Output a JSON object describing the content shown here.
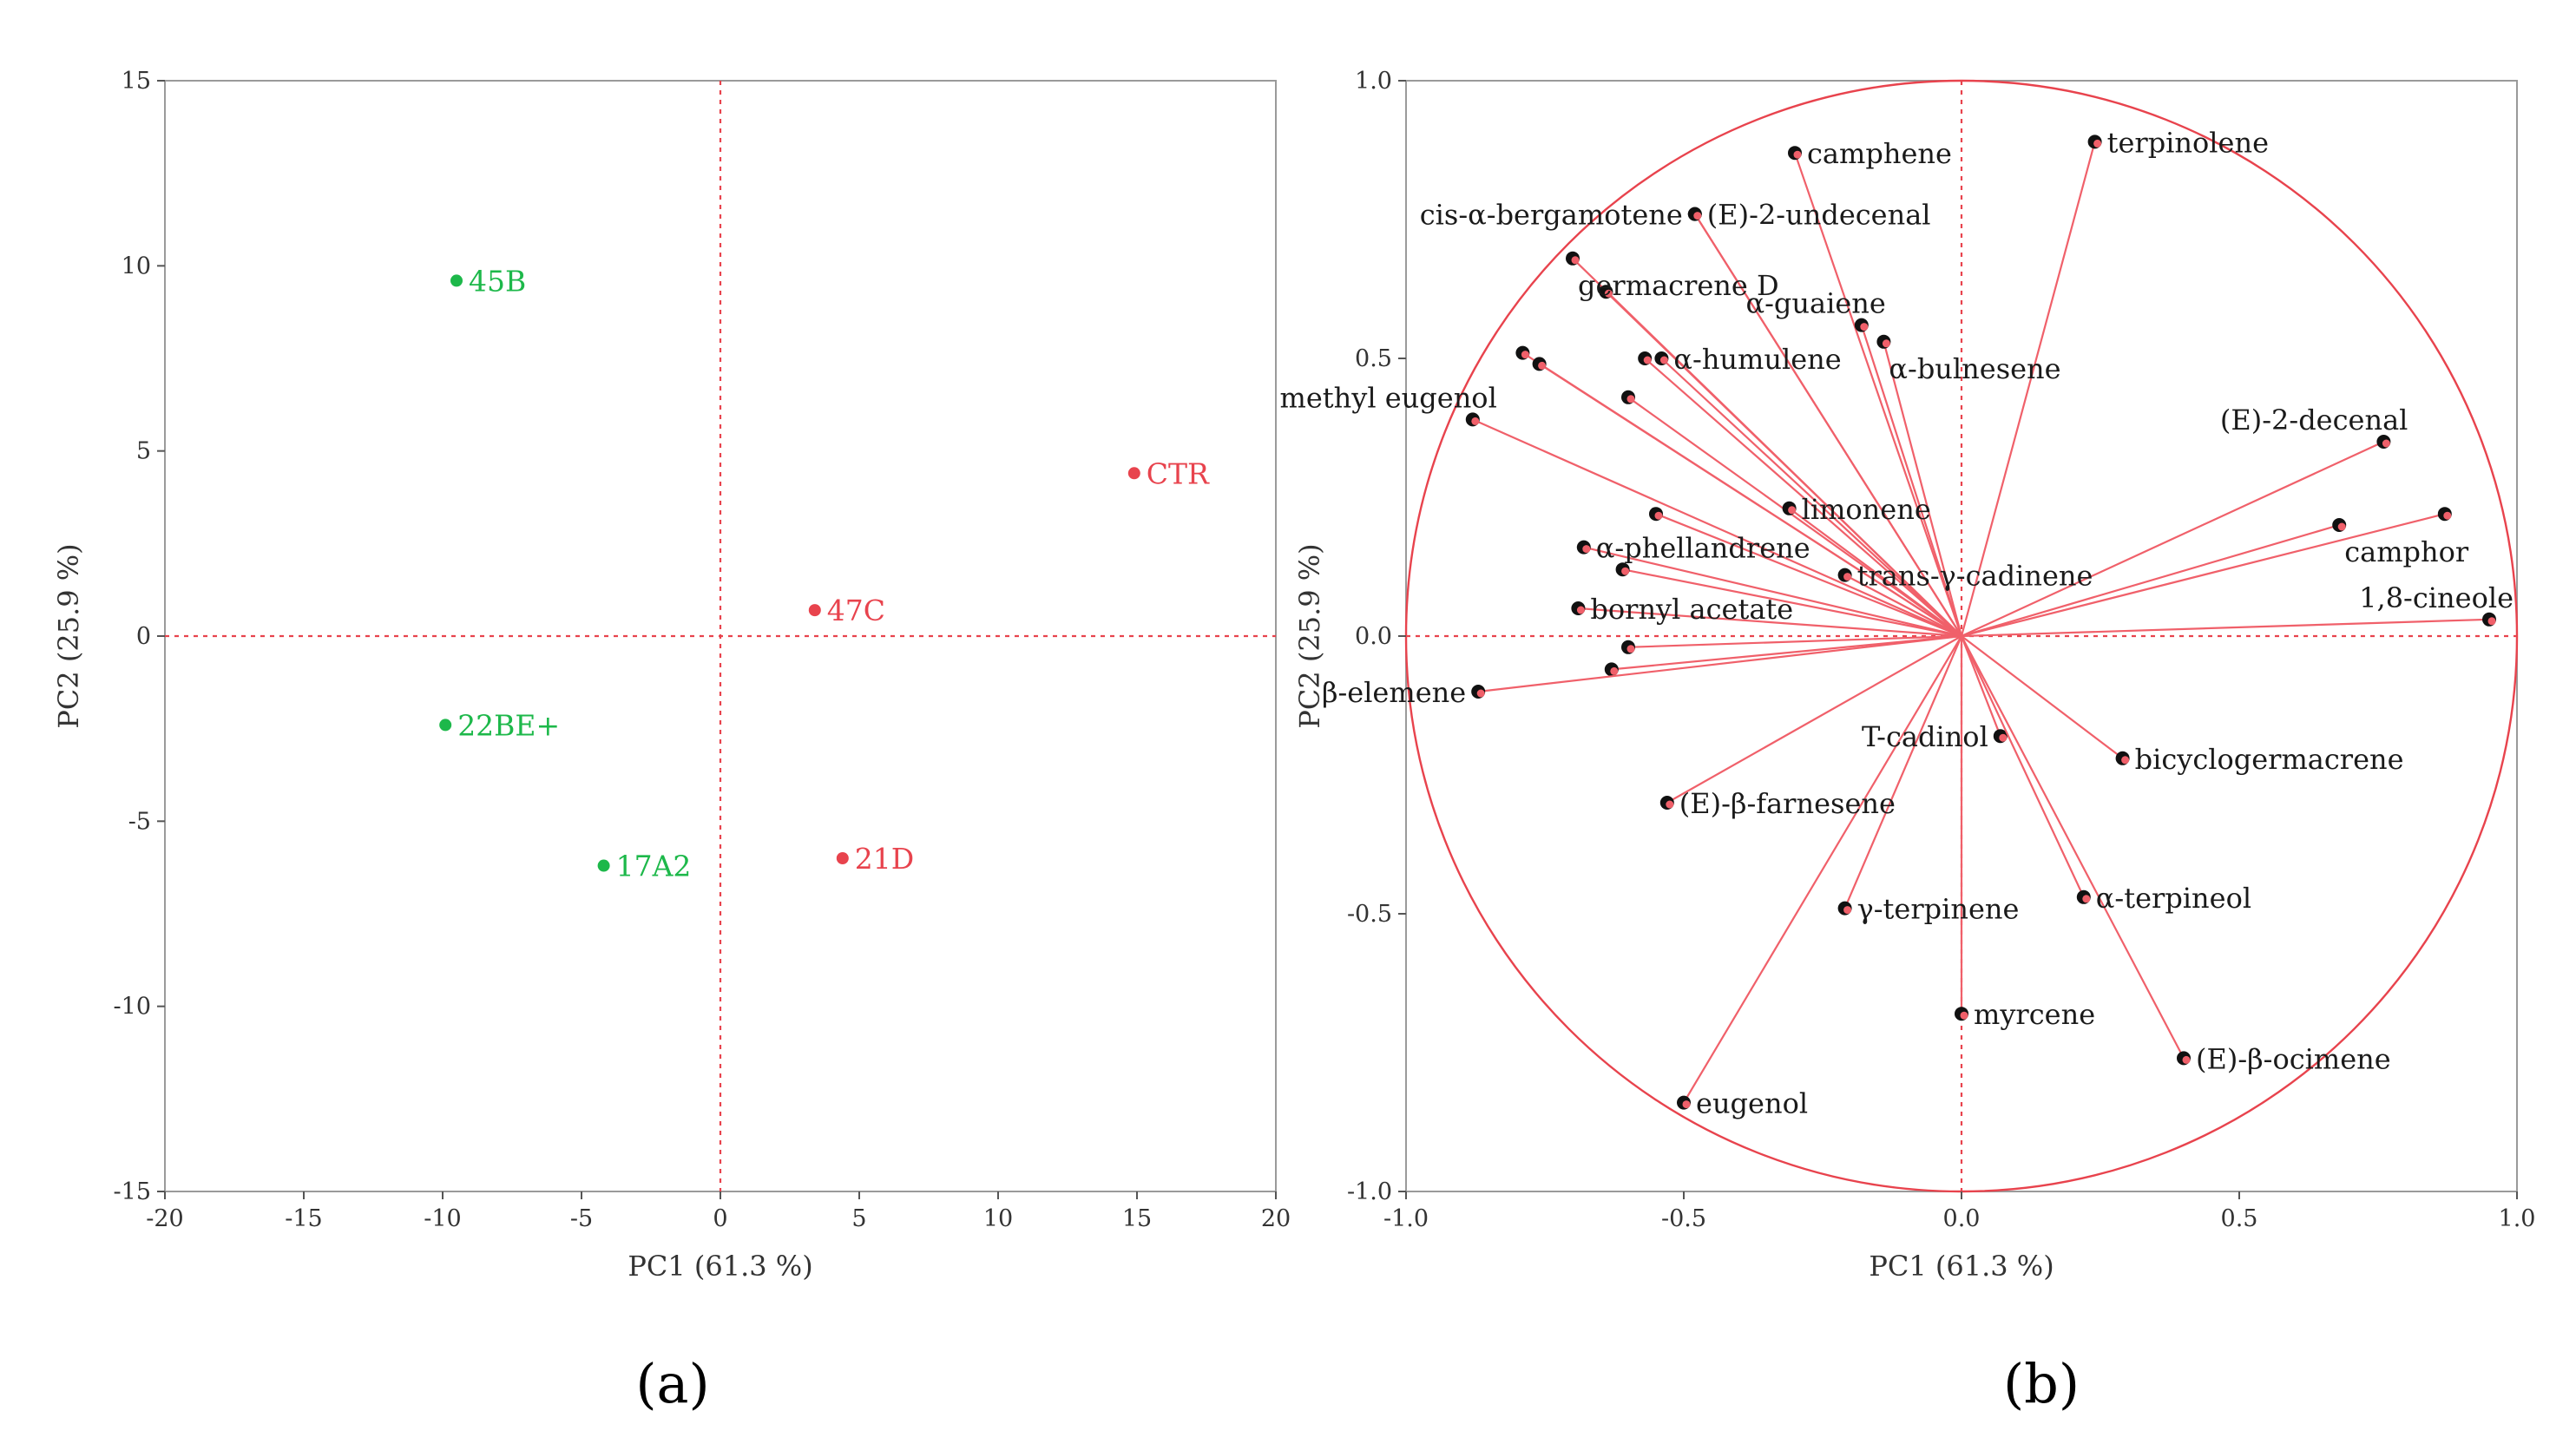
{
  "colors": {
    "green": "#1db84a",
    "red": "#e8434d",
    "circle": "#e8434d",
    "vector": "#f0606a",
    "marker": "#111111"
  },
  "chart_data": [
    {
      "type": "scatter",
      "panel_label": "(a)",
      "title": "",
      "xlabel": "PC1 (61.3 %)",
      "ylabel": "PC2 (25.9 %)",
      "xlim": [
        -20,
        20
      ],
      "ylim": [
        -15,
        15
      ],
      "xticks": [
        -20,
        -15,
        -10,
        -5,
        0,
        5,
        10,
        15,
        20
      ],
      "yticks": [
        -15,
        -10,
        -5,
        0,
        5,
        10,
        15
      ],
      "xtick_labels": [
        "-20",
        "-15",
        "-10",
        "-5",
        "0",
        "5",
        "10",
        "15",
        "20"
      ],
      "ytick_labels": [
        "-15",
        "-10",
        "-5",
        "0",
        "5",
        "10",
        "15"
      ],
      "grid": false,
      "points": [
        {
          "label": "45B",
          "x": -9.5,
          "y": 9.6,
          "group": "green"
        },
        {
          "label": "22BE+",
          "x": -9.9,
          "y": -2.4,
          "group": "green"
        },
        {
          "label": "17A2",
          "x": -4.2,
          "y": -6.2,
          "group": "green"
        },
        {
          "label": "CTR",
          "x": 14.9,
          "y": 4.4,
          "group": "red"
        },
        {
          "label": "47C",
          "x": 3.4,
          "y": 0.7,
          "group": "red"
        },
        {
          "label": "21D",
          "x": 4.4,
          "y": -6.0,
          "group": "red"
        }
      ]
    },
    {
      "type": "scatter",
      "subtype": "loading-plot",
      "panel_label": "(b)",
      "title": "",
      "xlabel": "PC1 (61.3 %)",
      "ylabel": "PC2 (25.9 %)",
      "xlim": [
        -1.0,
        1.0
      ],
      "ylim": [
        -1.0,
        1.0
      ],
      "xticks": [
        -1.0,
        -0.5,
        0.0,
        0.5,
        1.0
      ],
      "yticks": [
        -1.0,
        -0.5,
        0.0,
        0.5,
        1.0
      ],
      "xtick_labels": [
        "-1.0",
        "-0.5",
        "0.0",
        "0.5",
        "1.0"
      ],
      "ytick_labels": [
        "-1.0",
        "-0.5",
        "0.0",
        "0.5",
        "1.0"
      ],
      "grid": false,
      "unit_circle": true,
      "loadings": [
        {
          "label": "camphene",
          "x": -0.3,
          "y": 0.87,
          "anchor": "right"
        },
        {
          "label": "terpinolene",
          "x": 0.24,
          "y": 0.89,
          "anchor": "right"
        },
        {
          "label": "cis-α-bergamotene",
          "x": -0.48,
          "y": 0.76,
          "anchor": "left"
        },
        {
          "label": "(E)-2-undecenal",
          "x": -0.48,
          "y": 0.76,
          "anchor": "right"
        },
        {
          "label": "germacrene D",
          "x": -0.7,
          "y": 0.68,
          "anchor": "below"
        },
        {
          "label": "α-guaiene",
          "x": -0.18,
          "y": 0.56,
          "anchor": "above"
        },
        {
          "label": "α-bulnesene",
          "x": -0.14,
          "y": 0.53,
          "anchor": "below"
        },
        {
          "label": "",
          "x": -0.64,
          "y": 0.62
        },
        {
          "label": "",
          "x": -0.79,
          "y": 0.51
        },
        {
          "label": "",
          "x": -0.76,
          "y": 0.49
        },
        {
          "label": "",
          "x": -0.57,
          "y": 0.5
        },
        {
          "label": "α-humulene",
          "x": -0.54,
          "y": 0.5,
          "anchor": "right"
        },
        {
          "label": "methyl eugenol",
          "x": -0.88,
          "y": 0.39,
          "anchor": "above"
        },
        {
          "label": "",
          "x": -0.6,
          "y": 0.43
        },
        {
          "label": "limonene",
          "x": -0.31,
          "y": 0.23,
          "anchor": "right"
        },
        {
          "label": "",
          "x": -0.55,
          "y": 0.22
        },
        {
          "label": "α-phellandrene",
          "x": -0.68,
          "y": 0.16,
          "anchor": "right"
        },
        {
          "label": "",
          "x": -0.61,
          "y": 0.12
        },
        {
          "label": "trans-γ-cadinene",
          "x": -0.21,
          "y": 0.11,
          "anchor": "right"
        },
        {
          "label": "bornyl acetate",
          "x": -0.69,
          "y": 0.05,
          "anchor": "right"
        },
        {
          "label": "",
          "x": -0.6,
          "y": -0.02
        },
        {
          "label": "",
          "x": -0.63,
          "y": -0.06
        },
        {
          "label": "β-elemene",
          "x": -0.87,
          "y": -0.1,
          "anchor": "left"
        },
        {
          "label": "(E)-2-decenal",
          "x": 0.76,
          "y": 0.35,
          "anchor": "above"
        },
        {
          "label": "camphor",
          "x": 0.68,
          "y": 0.2,
          "anchor": "below"
        },
        {
          "label": "",
          "x": 0.87,
          "y": 0.22
        },
        {
          "label": "1,8-cineole",
          "x": 0.95,
          "y": 0.03,
          "anchor": "above"
        },
        {
          "label": "T-cadinol",
          "x": 0.07,
          "y": -0.18,
          "anchor": "left"
        },
        {
          "label": "bicyclogermacrene",
          "x": 0.29,
          "y": -0.22,
          "anchor": "right"
        },
        {
          "label": "(E)-β-farnesene",
          "x": -0.53,
          "y": -0.3,
          "anchor": "right"
        },
        {
          "label": "γ-terpinene",
          "x": -0.21,
          "y": -0.49,
          "anchor": "right"
        },
        {
          "label": "α-terpineol",
          "x": 0.22,
          "y": -0.47,
          "anchor": "right"
        },
        {
          "label": "myrcene",
          "x": 0.0,
          "y": -0.68,
          "anchor": "right"
        },
        {
          "label": "(E)-β-ocimene",
          "x": 0.4,
          "y": -0.76,
          "anchor": "right"
        },
        {
          "label": "eugenol",
          "x": -0.5,
          "y": -0.84,
          "anchor": "right"
        }
      ]
    }
  ]
}
